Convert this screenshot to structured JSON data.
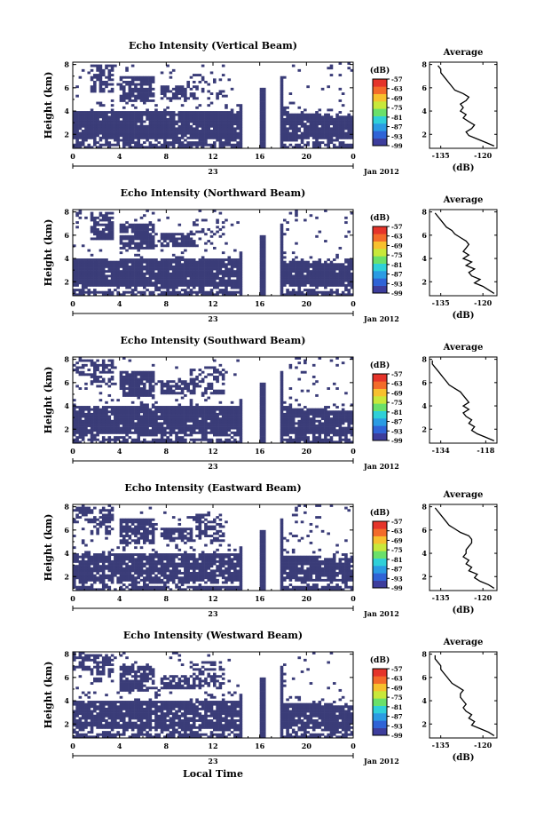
{
  "colors": {
    "echo_fill": "#3a3c78",
    "colorbar_bands": [
      "#3d3d9c",
      "#2f63d6",
      "#2a9be3",
      "#2fd0d8",
      "#6ae06a",
      "#c8e83a",
      "#f7c02e",
      "#f36b2a",
      "#e5342a"
    ],
    "line": "#000000"
  },
  "chart_data": [
    {
      "type": "heatmap",
      "title": "Echo Intensity (Vertical Beam)",
      "ylabel": "Height (km)",
      "x_ticks": [
        "0",
        "4",
        "8",
        "12",
        "16",
        "20",
        "0"
      ],
      "y_ticks": [
        "2",
        "4",
        "6",
        "8"
      ],
      "date_label": "23",
      "month_label": "Jan 2012",
      "colorbar_unit": "(dB)",
      "colorbar_ticks": [
        "-57",
        "-63",
        "-69",
        "-75",
        "-81",
        "-87",
        "-93",
        "-99"
      ],
      "profile": {
        "title": "Average",
        "x_ticks": [
          "-135",
          "-120"
        ],
        "y_ticks": [
          "2",
          "4",
          "6",
          "8"
        ],
        "xlabel": "(dB)",
        "xlim": [
          -139,
          -115
        ],
        "ylim": [
          0.8,
          8.2
        ],
        "points": [
          [
            -116,
            1.0
          ],
          [
            -119,
            1.3
          ],
          [
            -122,
            1.6
          ],
          [
            -125,
            1.9
          ],
          [
            -126,
            2.2
          ],
          [
            -124,
            2.5
          ],
          [
            -123,
            2.8
          ],
          [
            -125,
            3.1
          ],
          [
            -127,
            3.4
          ],
          [
            -126,
            3.7
          ],
          [
            -128,
            4.0
          ],
          [
            -127,
            4.3
          ],
          [
            -128,
            4.6
          ],
          [
            -126,
            4.9
          ],
          [
            -125,
            5.2
          ],
          [
            -127,
            5.5
          ],
          [
            -130,
            5.8
          ],
          [
            -131,
            6.1
          ],
          [
            -132,
            6.4
          ],
          [
            -133,
            6.7
          ],
          [
            -134,
            7.0
          ],
          [
            -135,
            7.3
          ],
          [
            -135,
            7.6
          ],
          [
            -136,
            7.9
          ]
        ]
      }
    },
    {
      "type": "heatmap",
      "title": "Echo Intensity (Northward Beam)",
      "ylabel": "Height (km)",
      "x_ticks": [
        "0",
        "4",
        "8",
        "12",
        "16",
        "20",
        "0"
      ],
      "y_ticks": [
        "2",
        "4",
        "6",
        "8"
      ],
      "date_label": "23",
      "month_label": "Jan 2012",
      "colorbar_unit": "(dB)",
      "colorbar_ticks": [
        "-57",
        "-63",
        "-69",
        "-75",
        "-81",
        "-87",
        "-93",
        "-99"
      ],
      "profile": {
        "title": "Average",
        "x_ticks": [
          "-135",
          "-120"
        ],
        "y_ticks": [
          "2",
          "4",
          "6",
          "8"
        ],
        "xlabel": "(dB)",
        "xlim": [
          -139,
          -115
        ],
        "ylim": [
          0.8,
          8.2
        ],
        "points": [
          [
            -116,
            1.0
          ],
          [
            -118,
            1.3
          ],
          [
            -120,
            1.6
          ],
          [
            -123,
            1.9
          ],
          [
            -121,
            2.2
          ],
          [
            -124,
            2.5
          ],
          [
            -125,
            2.8
          ],
          [
            -123,
            3.1
          ],
          [
            -126,
            3.4
          ],
          [
            -124,
            3.7
          ],
          [
            -127,
            4.0
          ],
          [
            -125,
            4.3
          ],
          [
            -127,
            4.6
          ],
          [
            -126,
            4.9
          ],
          [
            -125,
            5.2
          ],
          [
            -126,
            5.5
          ],
          [
            -128,
            5.8
          ],
          [
            -130,
            6.1
          ],
          [
            -131,
            6.4
          ],
          [
            -133,
            6.7
          ],
          [
            -134,
            7.0
          ],
          [
            -135,
            7.3
          ],
          [
            -136,
            7.6
          ],
          [
            -137,
            7.9
          ]
        ]
      }
    },
    {
      "type": "heatmap",
      "title": "Echo Intensity (Southward Beam)",
      "ylabel": "Height (km)",
      "x_ticks": [
        "0",
        "4",
        "8",
        "12",
        "16",
        "20",
        "0"
      ],
      "y_ticks": [
        "2",
        "4",
        "6",
        "8"
      ],
      "date_label": "23",
      "month_label": "Jan 2012",
      "colorbar_unit": "(dB)",
      "colorbar_ticks": [
        "-57",
        "-63",
        "-69",
        "-75",
        "-81",
        "-87",
        "-93",
        "-99"
      ],
      "profile": {
        "title": "Average",
        "x_ticks": [
          "-134",
          "-118"
        ],
        "y_ticks": [
          "2",
          "4",
          "6",
          "8"
        ],
        "xlabel": "",
        "xlim": [
          -138,
          -114
        ],
        "ylim": [
          0.8,
          8.2
        ],
        "points": [
          [
            -115,
            1.0
          ],
          [
            -118,
            1.3
          ],
          [
            -121,
            1.6
          ],
          [
            -123,
            1.9
          ],
          [
            -122,
            2.2
          ],
          [
            -124,
            2.5
          ],
          [
            -123,
            2.8
          ],
          [
            -125,
            3.1
          ],
          [
            -126,
            3.4
          ],
          [
            -124,
            3.7
          ],
          [
            -126,
            4.0
          ],
          [
            -124,
            4.3
          ],
          [
            -125,
            4.6
          ],
          [
            -126,
            4.9
          ],
          [
            -127,
            5.2
          ],
          [
            -129,
            5.5
          ],
          [
            -131,
            5.8
          ],
          [
            -132,
            6.1
          ],
          [
            -133,
            6.4
          ],
          [
            -134,
            6.7
          ],
          [
            -135,
            7.0
          ],
          [
            -136,
            7.3
          ],
          [
            -137,
            7.6
          ],
          [
            -137,
            7.9
          ]
        ]
      }
    },
    {
      "type": "heatmap",
      "title": "Echo Intensity (Eastward Beam)",
      "ylabel": "Height (km)",
      "x_ticks": [
        "0",
        "4",
        "8",
        "12",
        "16",
        "20",
        "0"
      ],
      "y_ticks": [
        "2",
        "4",
        "6",
        "8"
      ],
      "date_label": "23",
      "month_label": "Jan 2012",
      "colorbar_unit": "(dB)",
      "colorbar_ticks": [
        "-57",
        "-63",
        "-69",
        "-75",
        "-81",
        "-87",
        "-93",
        "-99"
      ],
      "profile": {
        "title": "Average",
        "x_ticks": [
          "-135",
          "-120"
        ],
        "y_ticks": [
          "2",
          "4",
          "6",
          "8"
        ],
        "xlabel": "(dB)",
        "xlim": [
          -139,
          -115
        ],
        "ylim": [
          0.8,
          8.2
        ],
        "points": [
          [
            -116,
            1.0
          ],
          [
            -118,
            1.3
          ],
          [
            -121,
            1.6
          ],
          [
            -123,
            1.9
          ],
          [
            -122,
            2.2
          ],
          [
            -125,
            2.5
          ],
          [
            -124,
            2.8
          ],
          [
            -126,
            3.1
          ],
          [
            -125,
            3.4
          ],
          [
            -127,
            3.7
          ],
          [
            -126,
            4.0
          ],
          [
            -126,
            4.3
          ],
          [
            -125,
            4.6
          ],
          [
            -124,
            4.9
          ],
          [
            -124,
            5.2
          ],
          [
            -125,
            5.5
          ],
          [
            -128,
            5.8
          ],
          [
            -130,
            6.1
          ],
          [
            -132,
            6.4
          ],
          [
            -133,
            6.7
          ],
          [
            -134,
            7.0
          ],
          [
            -135,
            7.3
          ],
          [
            -136,
            7.6
          ],
          [
            -137,
            7.9
          ]
        ]
      }
    },
    {
      "type": "heatmap",
      "title": "Echo Intensity (Westward Beam)",
      "ylabel": "Height (km)",
      "x_ticks": [
        "0",
        "4",
        "8",
        "12",
        "16",
        "20",
        "0"
      ],
      "y_ticks": [
        "2",
        "4",
        "6",
        "8"
      ],
      "date_label": "23",
      "month_label": "Jan 2012",
      "xlabel": "Local Time",
      "colorbar_unit": "(dB)",
      "colorbar_ticks": [
        "-57",
        "-63",
        "-69",
        "-75",
        "-81",
        "-87",
        "-93",
        "-99"
      ],
      "profile": {
        "title": "Average",
        "x_ticks": [
          "-135",
          "-120"
        ],
        "y_ticks": [
          "2",
          "4",
          "6",
          "8"
        ],
        "xlabel": "(dB)",
        "xlim": [
          -139,
          -115
        ],
        "ylim": [
          0.8,
          8.2
        ],
        "points": [
          [
            -116,
            1.0
          ],
          [
            -118,
            1.3
          ],
          [
            -121,
            1.6
          ],
          [
            -124,
            1.9
          ],
          [
            -123,
            2.2
          ],
          [
            -125,
            2.5
          ],
          [
            -124,
            2.8
          ],
          [
            -126,
            3.1
          ],
          [
            -127,
            3.4
          ],
          [
            -126,
            3.7
          ],
          [
            -127,
            4.0
          ],
          [
            -128,
            4.3
          ],
          [
            -128,
            4.6
          ],
          [
            -127,
            4.9
          ],
          [
            -129,
            5.2
          ],
          [
            -131,
            5.5
          ],
          [
            -132,
            5.8
          ],
          [
            -133,
            6.1
          ],
          [
            -134,
            6.4
          ],
          [
            -135,
            6.7
          ],
          [
            -135,
            7.0
          ],
          [
            -136,
            7.3
          ],
          [
            -137,
            7.6
          ],
          [
            -137,
            7.9
          ]
        ]
      }
    }
  ]
}
